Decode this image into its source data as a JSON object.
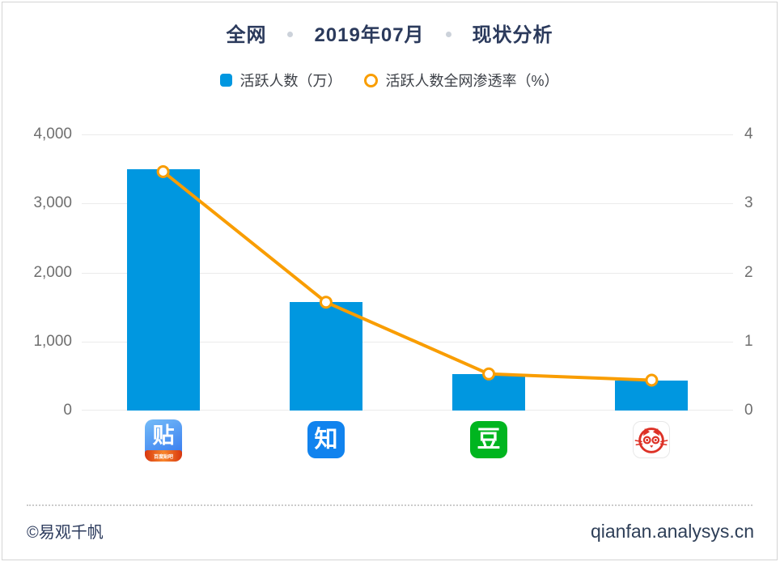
{
  "header": {
    "scope": "全网",
    "period": "2019年07月",
    "subject": "现状分析"
  },
  "apps": [
    {
      "id": "tieba",
      "name": "百度贴吧",
      "glyph": "贴",
      "ribbon": "百度贴吧"
    },
    {
      "id": "zhihu",
      "name": "知乎",
      "glyph": "知"
    },
    {
      "id": "douban",
      "name": "豆瓣",
      "glyph": "豆"
    },
    {
      "id": "mop",
      "name": "猫扑",
      "icon": "cat-face"
    }
  ],
  "footer": {
    "copyright": "©易观千帆",
    "site": "qianfan.analysys.cn"
  },
  "colors": {
    "title": "#2b3a5c",
    "bar_blue": "#0097e0",
    "line_orange": "#f99d00",
    "tieba_blue": "#3f82f0",
    "zhihu_blue": "#1183ee",
    "douban_green": "#00b51f",
    "mop_red": "#dd3126",
    "gridline": "#ebebeb"
  },
  "chart_data": {
    "type": "combo_bar_line",
    "title": "全网 · 2019年07月 · 现状分析",
    "categories": [
      "贴吧",
      "知乎",
      "豆瓣",
      "猫扑"
    ],
    "category_ids": [
      "tieba",
      "zhihu",
      "douban",
      "mop"
    ],
    "x_tick_style": "app-icons",
    "series": [
      {
        "name": "活跃人数（万）",
        "type": "bar",
        "y_axis": "left",
        "color": "#0097e0",
        "values": [
          3500,
          1570,
          530,
          440
        ]
      },
      {
        "name": "活跃人数全网渗透率（%）",
        "type": "line",
        "y_axis": "right",
        "color": "#f99d00",
        "marker": "open-circle",
        "values": [
          3.46,
          1.57,
          0.53,
          0.44
        ]
      }
    ],
    "left_axis": {
      "min": 0,
      "max": 4000,
      "ticks": [
        "0",
        "1,000",
        "2,000",
        "3,000",
        "4,000"
      ]
    },
    "right_axis": {
      "min": 0,
      "max": 4,
      "ticks": [
        "0",
        "1",
        "2",
        "3",
        "4"
      ]
    },
    "grid": "horizontal",
    "legend_position": "top"
  }
}
